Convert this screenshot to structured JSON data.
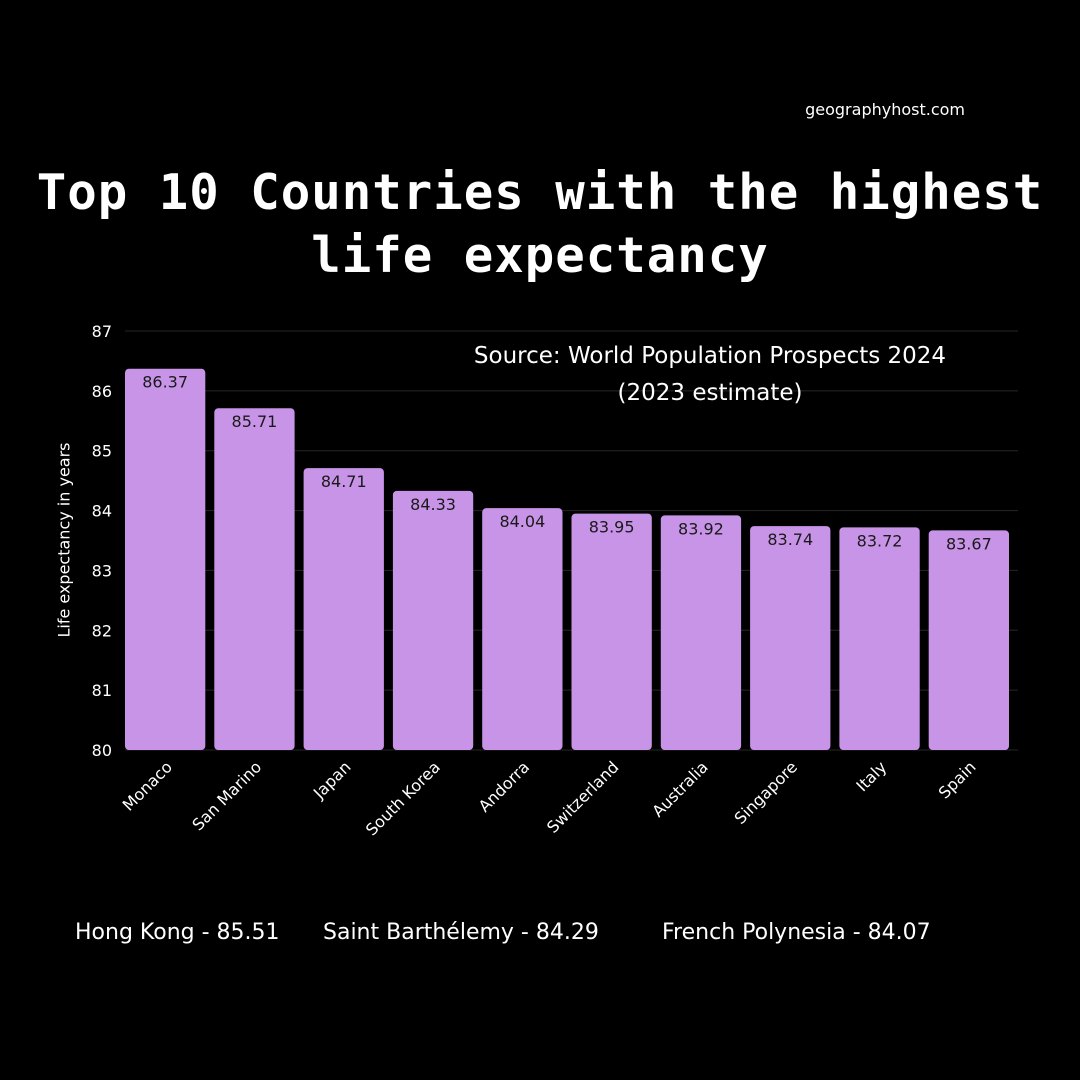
{
  "header": {
    "credit": "geographyhost.com",
    "title_line1": "Top 10 Countries with the highest",
    "title_line2": "life expectancy",
    "source_line1": "Source: World Population Prospects 2024",
    "source_line2": "(2023 estimate)"
  },
  "chart_data": {
    "type": "bar",
    "title": "Top 10 Countries with the highest life expectancy",
    "ylabel": "Life expectancy in years",
    "xlabel": "",
    "ylim": [
      80,
      87
    ],
    "yticks": [
      80,
      81,
      82,
      83,
      84,
      85,
      86,
      87
    ],
    "grid": true,
    "categories": [
      "Monaco",
      "San Marino",
      "Japan",
      "South Korea",
      "Andorra",
      "Switzerland",
      "Australia",
      "Singapore",
      "Italy",
      "Spain"
    ],
    "values": [
      86.37,
      85.71,
      84.71,
      84.33,
      84.04,
      83.95,
      83.92,
      83.74,
      83.72,
      83.67
    ],
    "value_labels": [
      "86.37",
      "85.71",
      "84.71",
      "84.33",
      "84.04",
      "83.95",
      "83.92",
      "83.74",
      "83.72",
      "83.67"
    ],
    "bar_color": "#c894e8",
    "label_color": "#1a1a1a"
  },
  "footer": {
    "items": [
      "Hong Kong - 85.51",
      "Saint Barthélemy - 84.29",
      "French Polynesia - 84.07"
    ]
  }
}
